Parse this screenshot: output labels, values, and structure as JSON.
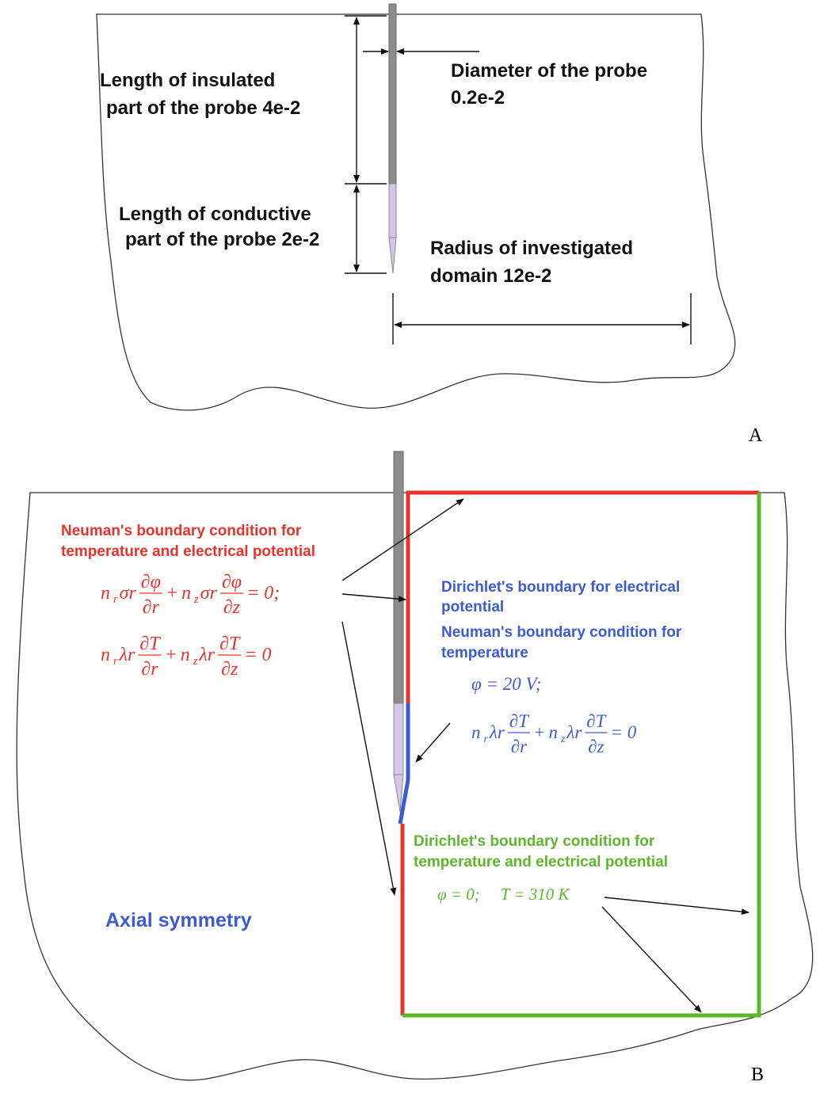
{
  "panel_a": {
    "label": "A",
    "insulated": [
      "Length of insulated",
      "part of the probe 4e-2"
    ],
    "diameter": [
      "Diameter of the probe",
      "0.2e-2"
    ],
    "conductive": [
      "Length of conductive",
      "part of the probe 2e-2"
    ],
    "radius": [
      "Radius of investigated",
      "domain 12e-2"
    ]
  },
  "panel_b": {
    "label": "B",
    "neumann_left": [
      "Neuman's boundary condition for",
      "temperature and electrical potential"
    ],
    "eq_left_1": [
      {
        "t": "n"
      },
      {
        "sub": "r"
      },
      {
        "t": "σr"
      },
      {
        "num": "∂φ",
        "den": "∂r"
      },
      {
        "t": "+"
      },
      {
        "t": "n"
      },
      {
        "sub": "z"
      },
      {
        "t": "σr"
      },
      {
        "num": "∂φ",
        "den": "∂z"
      },
      {
        "t": "= 0;"
      }
    ],
    "eq_left_2": [
      {
        "t": "n"
      },
      {
        "sub": "r"
      },
      {
        "t": "λr"
      },
      {
        "num": "∂T",
        "den": "∂r"
      },
      {
        "t": "+"
      },
      {
        "t": "n"
      },
      {
        "sub": "z"
      },
      {
        "t": "λr"
      },
      {
        "num": "∂T",
        "den": "∂z"
      },
      {
        "t": "= 0"
      }
    ],
    "dirichlet_blue": [
      "Dirichlet's boundary for electrical",
      "potential"
    ],
    "neumann_blue": [
      "Neuman's boundary condition for",
      "temperature"
    ],
    "eq_blue_1": [
      {
        "t": "φ = 20 V;"
      }
    ],
    "eq_blue_2": [
      {
        "t": "n"
      },
      {
        "sub": "r"
      },
      {
        "t": "λr"
      },
      {
        "num": "∂T",
        "den": "∂r"
      },
      {
        "t": "+"
      },
      {
        "t": "n"
      },
      {
        "sub": "z"
      },
      {
        "t": "λr"
      },
      {
        "num": "∂T",
        "den": "∂z"
      },
      {
        "t": "= 0"
      }
    ],
    "dirichlet_green": [
      "Dirichlet's boundary condition for",
      "temperature and electrical potential"
    ],
    "eq_green": [
      {
        "t": "φ = 0;"
      },
      {
        "t": "T = 310 K"
      }
    ],
    "axial": "Axial symmetry"
  }
}
